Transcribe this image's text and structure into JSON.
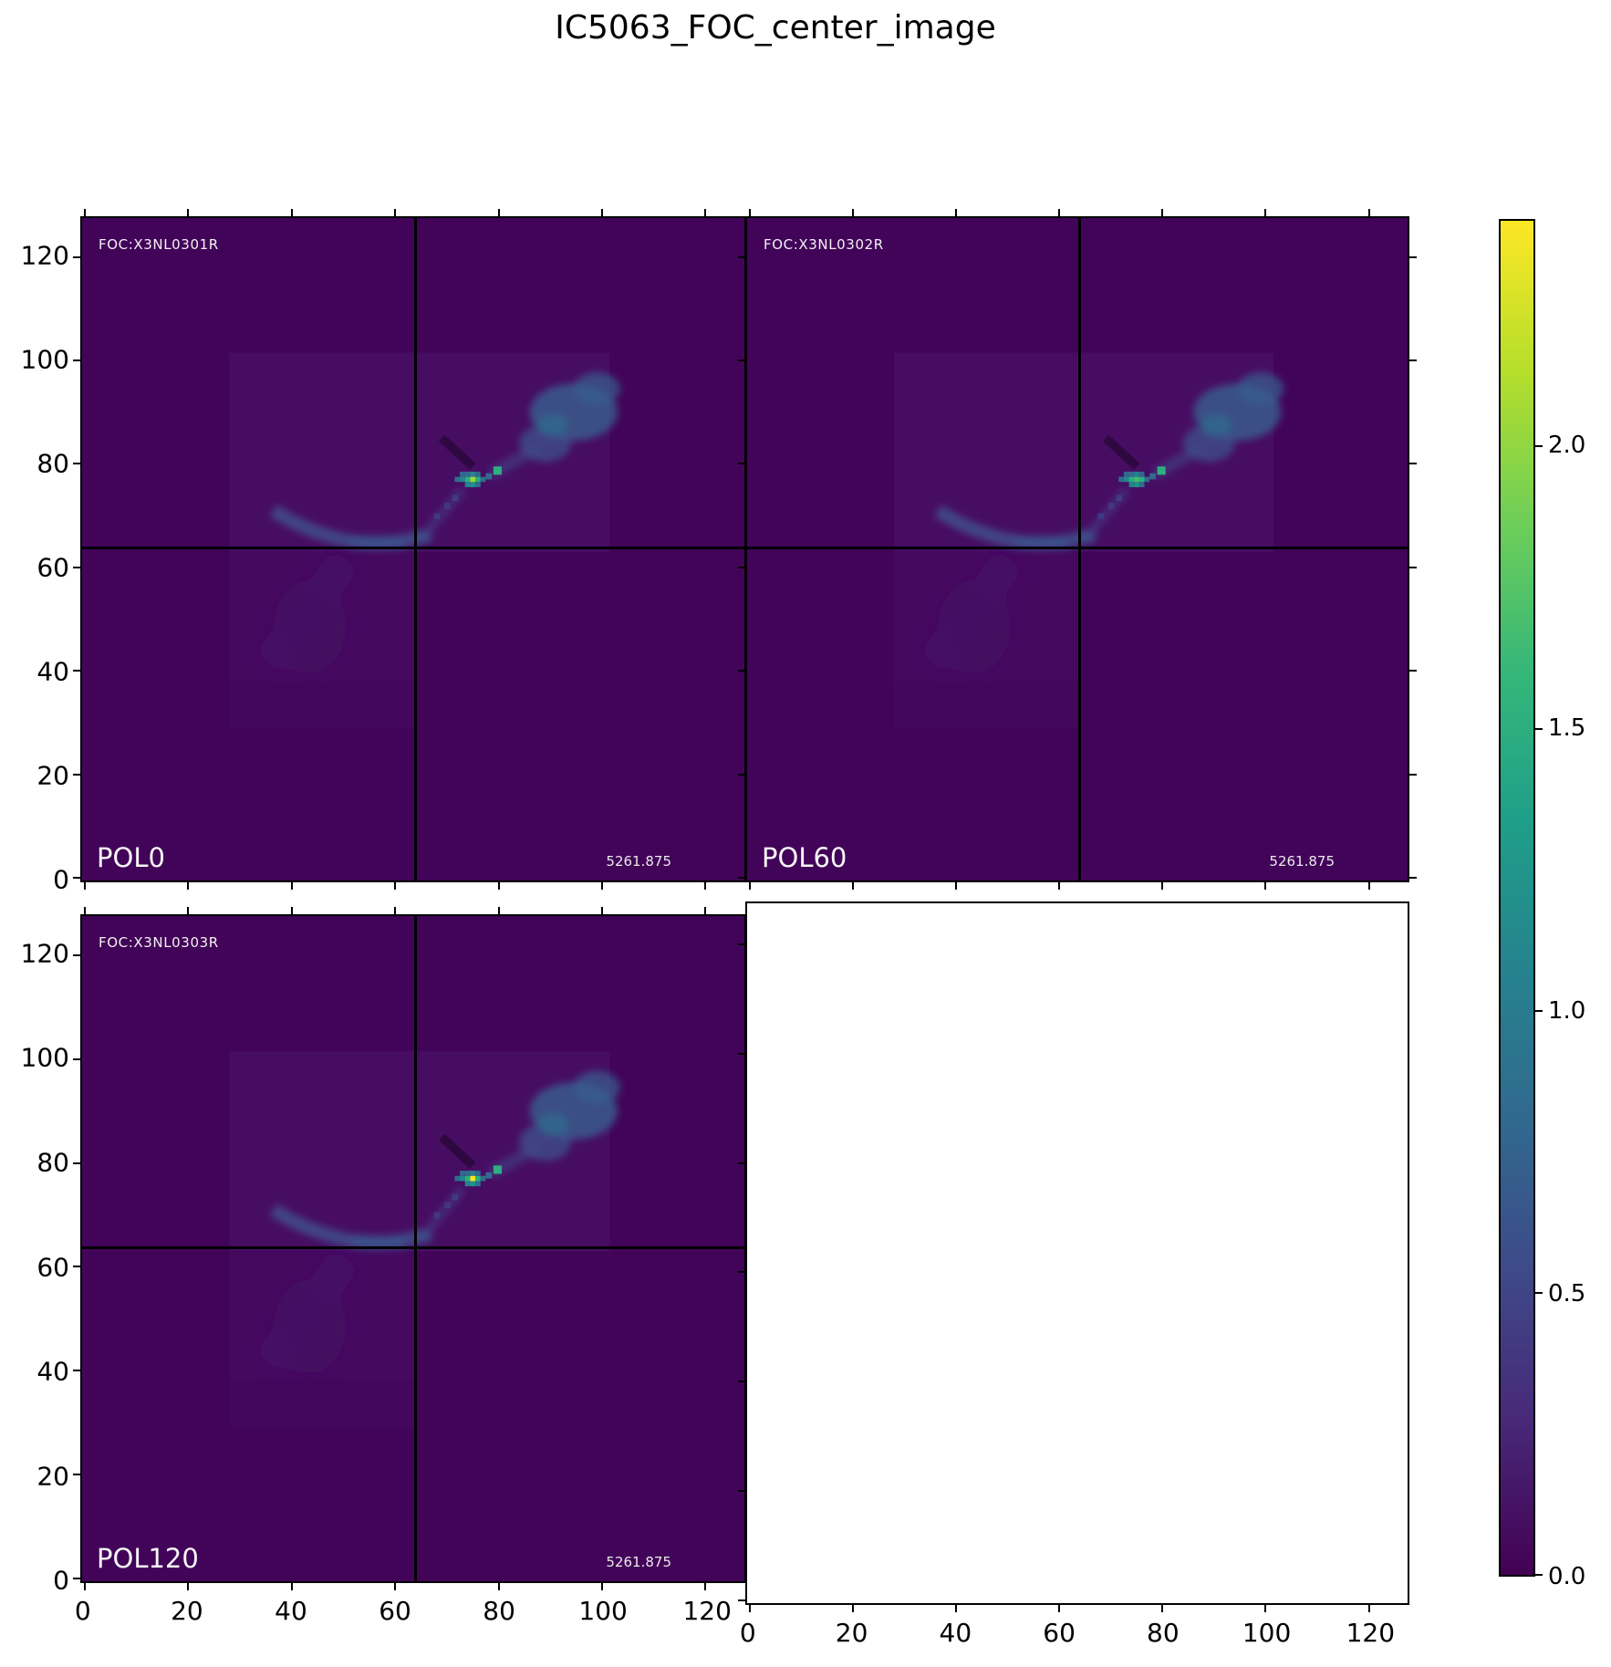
{
  "title": "IC5063_FOC_center_image",
  "panels": [
    {
      "foc_label": "FOC:X3NL0301R",
      "pol_label": "POL0",
      "wavelength": "5261.875",
      "core_color": "#96d83f"
    },
    {
      "foc_label": "FOC:X3NL0302R",
      "pol_label": "POL60",
      "wavelength": "5261.875",
      "core_color": "#3fbc73"
    },
    {
      "foc_label": "FOC:X3NL0303R",
      "pol_label": "POL120",
      "wavelength": "5261.875",
      "core_color": "#f2e51f"
    }
  ],
  "axes": {
    "x_tick_labels": [
      "0",
      "20",
      "40",
      "60",
      "80",
      "100",
      "120"
    ],
    "y_tick_labels": [
      "0",
      "20",
      "40",
      "60",
      "80",
      "100",
      "120"
    ]
  },
  "colorbar": {
    "vmin": 0.0,
    "vmax": 2.4,
    "tick_labels": [
      "0.0",
      "0.5",
      "1.0",
      "1.5",
      "2.0"
    ],
    "tick_values": [
      0.0,
      0.5,
      1.0,
      1.5,
      2.0
    ],
    "colormap": "viridis",
    "gradient": [
      "#440154",
      "#482878",
      "#3e4989",
      "#31688e",
      "#26828e",
      "#1f9e89",
      "#35b779",
      "#6ece58",
      "#b5de2b",
      "#fde725"
    ]
  },
  "image_colors": {
    "background": "#420459",
    "exposure_region": "#470d63",
    "crosshair": "#000000",
    "arm_blue": "#3a5f8d",
    "arc_blue": "#414b8a"
  },
  "chart_data": {
    "type": "heatmap",
    "title": "IC5063_FOC_center_image",
    "layout": "2x2 subplot grid; bottom-right axes is empty (no image); shared colorbar at right",
    "panels": [
      {
        "position": "top-left",
        "pol_label": "POL0",
        "foc_label": "FOC:X3NL0301R",
        "wavelength": "5261.875",
        "peak_value": 2.1,
        "peak_xy": [
          75,
          77
        ]
      },
      {
        "position": "top-right",
        "pol_label": "POL60",
        "foc_label": "FOC:X3NL0302R",
        "wavelength": "5261.875",
        "peak_value": 1.9,
        "peak_xy": [
          76,
          77
        ]
      },
      {
        "position": "bottom-left",
        "pol_label": "POL120",
        "foc_label": "FOC:X3NL0303R",
        "wavelength": "5261.875",
        "peak_value": 2.35,
        "peak_xy": [
          75,
          77
        ]
      }
    ],
    "axis": {
      "range": [
        -0.5,
        127.5
      ],
      "tick_values": [
        0,
        20,
        40,
        60,
        80,
        100,
        120
      ]
    },
    "crosshair_xy": [
      64,
      63
    ],
    "colorbar": {
      "vmin": 0.0,
      "vmax": 2.4,
      "tick_values": [
        0.0,
        0.5,
        1.0,
        1.5,
        2.0
      ],
      "colormap": "viridis"
    },
    "features": "IC 5063 galaxy imaged in 3 polarizer angles: bright nucleus cluster near (75,77); diffuse blue NW arm spanning x 83-102, y 80-100 (values ~0.4-0.8); curved SE arc from (37,71) to (66,66) (~0.4-0.7); faint SW tail toward (36,42); slightly elevated background rectangle x 28-102, y 38-102; dark dust lane from (70,85) to (76,79)"
  }
}
